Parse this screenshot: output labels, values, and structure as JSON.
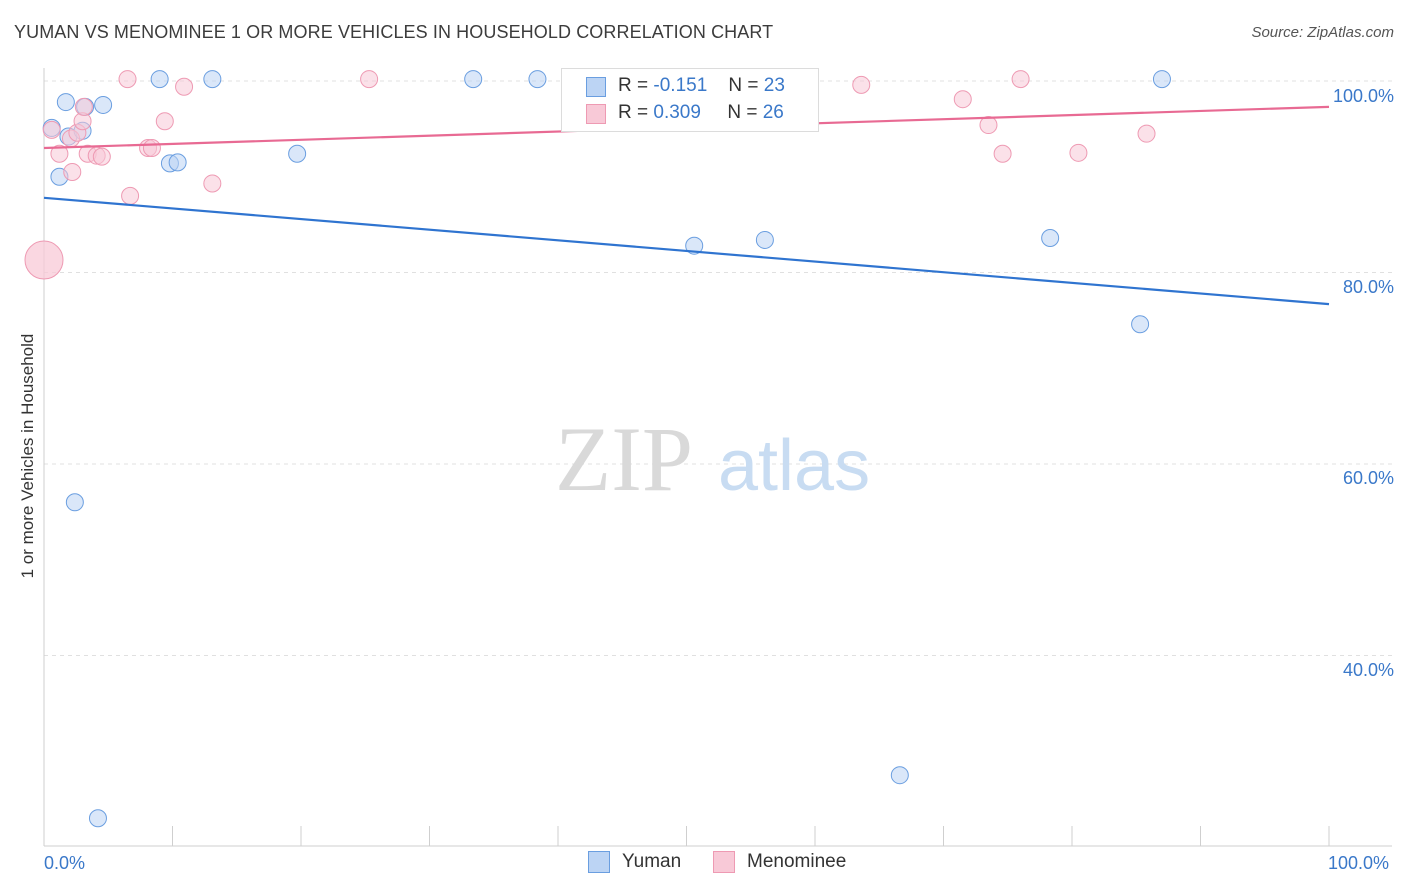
{
  "title": "YUMAN VS MENOMINEE 1 OR MORE VEHICLES IN HOUSEHOLD CORRELATION CHART",
  "source": "Source: ZipAtlas.com",
  "watermark": {
    "zip": "ZIP",
    "atlas": "atlas"
  },
  "colors": {
    "yuman": "#6a9ee0",
    "yuman_fill": "#bcd4f4",
    "yuman_line": "#2f74d0",
    "menominee": "#ee9ab3",
    "menominee_fill": "#f8c9d7",
    "menominee_line": "#e86a93",
    "tick_text": "#3a78c9"
  },
  "legend": {
    "r_label": "R =",
    "n_label": "N =",
    "yuman": {
      "r": "-0.151",
      "n": "23"
    },
    "menominee": {
      "r": "0.309",
      "n": "26"
    }
  },
  "chart_data": {
    "type": "scatter",
    "title": "YUMAN VS MENOMINEE 1 OR MORE VEHICLES IN HOUSEHOLD CORRELATION CHART",
    "xlabel": "",
    "ylabel": "1 or more Vehicles in Household",
    "xlim": [
      0,
      100
    ],
    "ylim": [
      21,
      103.5
    ],
    "x_tick_labels": [
      "0.0%",
      "100.0%"
    ],
    "y_ticks": [
      40,
      60,
      80,
      100
    ],
    "y_tick_labels": [
      "40.0%",
      "60.0%",
      "80.0%",
      "100.0%"
    ],
    "grid": true,
    "legend_position": "bottom-center",
    "series": [
      {
        "name": "Yuman",
        "points": [
          [
            0.6,
            95.1
          ],
          [
            1.2,
            90.0
          ],
          [
            1.7,
            97.8
          ],
          [
            1.9,
            94.2
          ],
          [
            3.0,
            94.8
          ],
          [
            3.2,
            97.3
          ],
          [
            4.6,
            97.5
          ],
          [
            9.0,
            100.2
          ],
          [
            9.8,
            91.4
          ],
          [
            10.4,
            91.5
          ],
          [
            13.1,
            100.2
          ],
          [
            19.7,
            92.4
          ],
          [
            33.4,
            100.2
          ],
          [
            38.4,
            100.2
          ],
          [
            49.3,
            100.2
          ],
          [
            50.6,
            82.8
          ],
          [
            56.1,
            83.4
          ],
          [
            78.3,
            83.6
          ],
          [
            85.3,
            74.6
          ],
          [
            87.0,
            100.2
          ],
          [
            2.4,
            56.0
          ],
          [
            66.6,
            27.5
          ],
          [
            4.2,
            23.0
          ]
        ],
        "trend": {
          "x": [
            0,
            100
          ],
          "y": [
            87.8,
            76.7
          ]
        }
      },
      {
        "name": "Menominee",
        "points": [
          [
            0.6,
            94.9
          ],
          [
            1.2,
            92.4
          ],
          [
            2.1,
            94.0
          ],
          [
            2.2,
            90.5
          ],
          [
            2.6,
            94.6
          ],
          [
            3.0,
            95.8
          ],
          [
            3.1,
            97.3
          ],
          [
            3.4,
            92.4
          ],
          [
            4.1,
            92.2
          ],
          [
            4.5,
            92.1
          ],
          [
            6.7,
            88.0
          ],
          [
            6.5,
            100.2
          ],
          [
            8.1,
            93.0
          ],
          [
            8.4,
            93.0
          ],
          [
            9.4,
            95.8
          ],
          [
            10.9,
            99.4
          ],
          [
            13.1,
            89.3
          ],
          [
            25.3,
            100.2
          ],
          [
            63.6,
            99.6
          ],
          [
            71.5,
            98.1
          ],
          [
            73.5,
            95.4
          ],
          [
            74.6,
            92.4
          ],
          [
            76.0,
            100.2
          ],
          [
            80.5,
            92.5
          ],
          [
            85.8,
            94.5
          ],
          [
            0.0,
            81.3
          ]
        ],
        "trend": {
          "x": [
            0,
            100
          ],
          "y": [
            93.0,
            97.3
          ]
        }
      }
    ]
  }
}
